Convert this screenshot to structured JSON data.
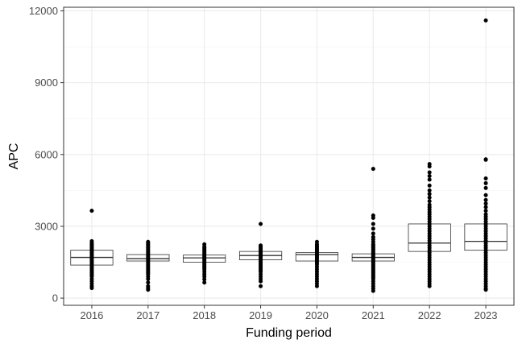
{
  "chart_data": {
    "type": "box",
    "title": "",
    "xlabel": "Funding period",
    "ylabel": "APC",
    "categories": [
      "2016",
      "2017",
      "2018",
      "2019",
      "2020",
      "2021",
      "2022",
      "2023"
    ],
    "ylim": [
      -300,
      12150
    ],
    "yticks": [
      0,
      3000,
      6000,
      9000,
      12000
    ],
    "ytick_labels": [
      "0",
      "3000",
      "6000",
      "9000",
      "12000"
    ],
    "grid": true,
    "legend": "none",
    "colors": {
      "box_fill": "#ffffff",
      "box_stroke": "#333333",
      "points": "#000000",
      "grid_major": "#ebebeb",
      "grid_minor": "#f3f3f3",
      "panel_border": "#333333"
    },
    "boxes": [
      {
        "category": "2016",
        "q1": 1380,
        "median": 1700,
        "q3": 2000,
        "points": [
          3650,
          2380,
          2300,
          2250,
          2200,
          2150,
          2100,
          2050,
          2000,
          1950,
          1900,
          1850,
          1800,
          1750,
          1700,
          1650,
          1600,
          1550,
          1500,
          1450,
          1400,
          1350,
          1300,
          1250,
          1200,
          1150,
          1100,
          1050,
          1000,
          950,
          900,
          800,
          700,
          600,
          500,
          420
        ]
      },
      {
        "category": "2017",
        "q1": 1550,
        "median": 1650,
        "q3": 1820,
        "points": [
          2350,
          2300,
          2250,
          2200,
          2150,
          2100,
          2050,
          2000,
          1950,
          1900,
          1850,
          1800,
          1750,
          1700,
          1650,
          1600,
          1550,
          1500,
          1450,
          1400,
          1350,
          1300,
          1250,
          1200,
          1150,
          1100,
          1050,
          1000,
          900,
          800,
          650,
          500,
          420,
          350
        ]
      },
      {
        "category": "2018",
        "q1": 1500,
        "median": 1680,
        "q3": 1800,
        "points": [
          2250,
          2150,
          2100,
          2050,
          2000,
          1950,
          1900,
          1850,
          1800,
          1750,
          1700,
          1650,
          1600,
          1550,
          1500,
          1450,
          1400,
          1350,
          1300,
          1250,
          1200,
          1100,
          1000,
          900,
          780,
          650
        ]
      },
      {
        "category": "2019",
        "q1": 1600,
        "median": 1780,
        "q3": 1950,
        "points": [
          3100,
          2200,
          2150,
          2100,
          2050,
          2000,
          1950,
          1900,
          1850,
          1800,
          1750,
          1700,
          1650,
          1600,
          1550,
          1500,
          1450,
          1400,
          1350,
          1300,
          1250,
          1200,
          1150,
          1100,
          1000,
          900,
          800,
          700,
          500
        ]
      },
      {
        "category": "2020",
        "q1": 1550,
        "median": 1820,
        "q3": 1900,
        "points": [
          2350,
          2250,
          2200,
          2150,
          2100,
          2050,
          2000,
          1950,
          1900,
          1850,
          1800,
          1750,
          1700,
          1650,
          1600,
          1550,
          1500,
          1450,
          1400,
          1300,
          1200,
          1100,
          1000,
          900,
          800,
          700,
          600,
          500
        ]
      },
      {
        "category": "2021",
        "q1": 1550,
        "median": 1700,
        "q3": 1850,
        "points": [
          5400,
          3450,
          3350,
          3100,
          2900,
          2700,
          2550,
          2450,
          2350,
          2250,
          2200,
          2150,
          2100,
          2050,
          2000,
          1950,
          1900,
          1850,
          1800,
          1750,
          1700,
          1650,
          1600,
          1550,
          1500,
          1450,
          1400,
          1350,
          1300,
          1250,
          1200,
          1150,
          1100,
          1050,
          1000,
          950,
          900,
          850,
          800,
          700,
          600,
          500,
          400,
          300
        ]
      },
      {
        "category": "2022",
        "q1": 1950,
        "median": 2300,
        "q3": 3100,
        "points": [
          5600,
          5500,
          5250,
          5100,
          4950,
          4700,
          4500,
          4350,
          4200,
          4050,
          3900,
          3800,
          3700,
          3600,
          3500,
          3400,
          3300,
          3200,
          3100,
          3000,
          2900,
          2800,
          2700,
          2600,
          2500,
          2400,
          2300,
          2200,
          2100,
          2000,
          1900,
          1800,
          1700,
          1600,
          1500,
          1400,
          1300,
          1200,
          1100,
          1000,
          900,
          800,
          700,
          600,
          500
        ]
      },
      {
        "category": "2023",
        "q1": 2000,
        "median": 2370,
        "q3": 3100,
        "points": [
          11600,
          5800,
          5780,
          5000,
          4800,
          4600,
          4300,
          4100,
          3950,
          3800,
          3650,
          3500,
          3400,
          3300,
          3200,
          3100,
          3000,
          2900,
          2800,
          2700,
          2600,
          2500,
          2400,
          2300,
          2200,
          2100,
          2000,
          1900,
          1800,
          1700,
          1600,
          1500,
          1400,
          1300,
          1200,
          1100,
          1000,
          900,
          800,
          700,
          600,
          500,
          400,
          350
        ]
      }
    ]
  }
}
